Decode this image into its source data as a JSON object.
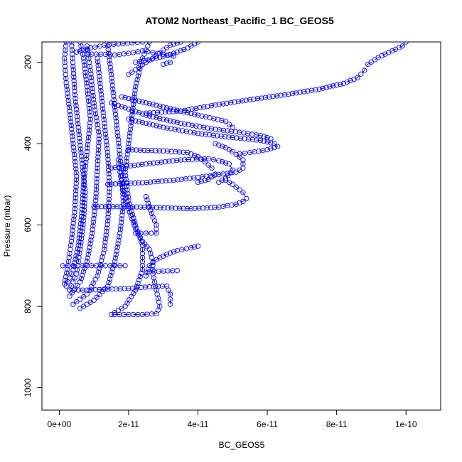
{
  "chart_data": {
    "type": "scatter",
    "title": "ATOM2 Northeast_Pacific_1 BC_GEOS5",
    "xlabel": "BC_GEOS5",
    "ylabel": "Pressure (mbar)",
    "xlim": [
      -5e-12,
      1.1e-10
    ],
    "ylim": [
      1055,
      150
    ],
    "y_reversed": true,
    "grid": false,
    "legend": "none",
    "marker": "open-circle",
    "color": "#0000ff",
    "x_ticks": [
      {
        "value": 0,
        "label": "0e+00"
      },
      {
        "value": 2e-11,
        "label": "2e-11"
      },
      {
        "value": 4e-11,
        "label": "4e-11"
      },
      {
        "value": 6e-11,
        "label": "6e-11"
      },
      {
        "value": 8e-11,
        "label": "8e-11"
      },
      {
        "value": 1e-10,
        "label": "1e-10"
      }
    ],
    "y_ticks": [
      {
        "value": 200,
        "label": "200"
      },
      {
        "value": 400,
        "label": "400"
      },
      {
        "value": 600,
        "label": "600"
      },
      {
        "value": 800,
        "label": "800"
      },
      {
        "value": 1000,
        "label": "1000"
      }
    ],
    "series": [
      {
        "values": [
          [
            1.5e-12,
            745
          ],
          [
            2.5e-12,
            700
          ],
          [
            3.5e-12,
            640
          ],
          [
            4.5e-12,
            560
          ],
          [
            5e-12,
            480
          ],
          [
            4e-12,
            400
          ],
          [
            3e-12,
            320
          ],
          [
            2e-12,
            250
          ],
          [
            1.5e-12,
            190
          ],
          [
            2e-12,
            150
          ]
        ]
      },
      {
        "values": [
          [
            3e-12,
            760
          ],
          [
            5e-12,
            720
          ],
          [
            6e-12,
            660
          ],
          [
            7e-12,
            590
          ],
          [
            7.5e-12,
            520
          ],
          [
            6.5e-12,
            440
          ],
          [
            5.5e-12,
            360
          ],
          [
            4.5e-12,
            280
          ],
          [
            4e-12,
            210
          ],
          [
            3.5e-12,
            150
          ]
        ]
      },
      {
        "values": [
          [
            2e-12,
            750
          ],
          [
            4e-12,
            710
          ],
          [
            5.5e-12,
            650
          ],
          [
            6.5e-12,
            570
          ],
          [
            7e-12,
            500
          ],
          [
            8e-12,
            420
          ],
          [
            9e-12,
            340
          ],
          [
            8e-12,
            260
          ],
          [
            7e-12,
            190
          ],
          [
            6e-12,
            150
          ]
        ]
      },
      {
        "values": [
          [
            3e-12,
            775
          ],
          [
            6e-12,
            740
          ],
          [
            8e-12,
            690
          ],
          [
            9.5e-12,
            620
          ],
          [
            1.05e-11,
            540
          ],
          [
            1.1e-11,
            460
          ],
          [
            1.15e-11,
            380
          ],
          [
            1e-11,
            300
          ],
          [
            9e-12,
            220
          ],
          [
            8e-12,
            160
          ]
        ]
      },
      {
        "values": [
          [
            4e-12,
            795
          ],
          [
            8e-12,
            770
          ],
          [
            1.1e-11,
            725
          ],
          [
            1.3e-11,
            660
          ],
          [
            1.4e-11,
            590
          ],
          [
            1.45e-11,
            510
          ],
          [
            1.4e-11,
            430
          ],
          [
            1.3e-11,
            350
          ],
          [
            1.2e-11,
            270
          ],
          [
            1.1e-11,
            190
          ]
        ]
      },
      {
        "values": [
          [
            6e-12,
            805
          ],
          [
            1e-11,
            785
          ],
          [
            1.4e-11,
            750
          ],
          [
            1.6e-11,
            690
          ],
          [
            1.75e-11,
            620
          ],
          [
            1.85e-11,
            550
          ],
          [
            1.8e-11,
            470
          ],
          [
            1.7e-11,
            390
          ],
          [
            1.6e-11,
            310
          ],
          [
            1.5e-11,
            230
          ],
          [
            1.4e-11,
            160
          ]
        ]
      },
      {
        "values": [
          [
            1.5e-11,
            820
          ],
          [
            1.9e-11,
            800
          ],
          [
            2.2e-11,
            760
          ],
          [
            2.4e-11,
            710
          ],
          [
            2.4e-11,
            650
          ],
          [
            2.2e-11,
            600
          ],
          [
            2e-11,
            540
          ],
          [
            1.9e-11,
            470
          ],
          [
            2e-11,
            400
          ],
          [
            2.1e-11,
            330
          ],
          [
            2.2e-11,
            260
          ],
          [
            2.4e-11,
            190
          ],
          [
            2.6e-11,
            150
          ]
        ]
      },
      {
        "values": [
          [
            1.6e-11,
            820
          ],
          [
            2e-11,
            820
          ],
          [
            2.4e-11,
            820
          ],
          [
            2.8e-11,
            818
          ],
          [
            2.9e-11,
            800
          ],
          [
            2.8e-11,
            760
          ],
          [
            2.7e-11,
            720
          ],
          [
            2.7e-11,
            690
          ],
          [
            2.6e-11,
            660
          ],
          [
            2.4e-11,
            640
          ],
          [
            2.2e-11,
            610
          ],
          [
            2e-11,
            560
          ],
          [
            1.8e-11,
            500
          ],
          [
            1.7e-11,
            440
          ]
        ]
      },
      {
        "values": [
          [
            1e-12,
            700
          ],
          [
            4e-12,
            700
          ],
          [
            8e-12,
            700
          ],
          [
            1.2e-11,
            700
          ],
          [
            1.6e-11,
            700
          ],
          [
            1.9e-11,
            700
          ]
        ]
      },
      {
        "values": [
          [
            3e-12,
            760
          ],
          [
            8e-12,
            760
          ],
          [
            1.4e-11,
            758
          ],
          [
            2e-11,
            756
          ],
          [
            2.6e-11,
            752
          ],
          [
            3.1e-11,
            750
          ],
          [
            3.2e-11,
            770
          ],
          [
            3.2e-11,
            795
          ]
        ]
      },
      {
        "values": [
          [
            2.2e-11,
            620
          ],
          [
            2.5e-11,
            620
          ],
          [
            2.8e-11,
            620
          ],
          [
            2.8e-11,
            600
          ],
          [
            2.7e-11,
            580
          ],
          [
            2.6e-11,
            555
          ],
          [
            2.5e-11,
            530
          ]
        ]
      },
      {
        "values": [
          [
            2.6e-11,
            715
          ],
          [
            3e-11,
            713
          ],
          [
            3.4e-11,
            712
          ]
        ]
      },
      {
        "values": [
          [
            2.5e-11,
            725
          ],
          [
            2.6e-11,
            700
          ],
          [
            2.8e-11,
            685
          ],
          [
            3.1e-11,
            672
          ],
          [
            3.4e-11,
            663
          ],
          [
            3.8e-11,
            656
          ],
          [
            4e-11,
            652
          ]
        ]
      },
      {
        "values": [
          [
            1e-11,
            555
          ],
          [
            2e-11,
            555
          ],
          [
            2.8e-11,
            557
          ],
          [
            3.8e-11,
            560
          ],
          [
            4.6e-11,
            556
          ],
          [
            5.1e-11,
            549
          ],
          [
            5.3e-11,
            542
          ],
          [
            5.4e-11,
            535
          ],
          [
            5.3e-11,
            520
          ],
          [
            5e-11,
            500
          ],
          [
            4.8e-11,
            490
          ]
        ]
      },
      {
        "values": [
          [
            1.4e-11,
            500
          ],
          [
            2.4e-11,
            496
          ],
          [
            3.3e-11,
            490
          ],
          [
            4e-11,
            483
          ],
          [
            4.6e-11,
            476
          ],
          [
            5.1e-11,
            470
          ],
          [
            5.3e-11,
            460
          ],
          [
            5.3e-11,
            440
          ],
          [
            5e-11,
            420
          ],
          [
            4.8e-11,
            410
          ],
          [
            4.5e-11,
            400
          ]
        ]
      },
      {
        "values": [
          [
            1.5e-11,
            460
          ],
          [
            2.5e-11,
            450
          ],
          [
            3.5e-11,
            440
          ],
          [
            4.3e-11,
            437
          ],
          [
            4.6e-11,
            442
          ],
          [
            4.9e-11,
            450
          ],
          [
            5e-11,
            465
          ],
          [
            4.8e-11,
            485
          ],
          [
            4.6e-11,
            495
          ]
        ]
      },
      {
        "values": [
          [
            2e-11,
            415
          ],
          [
            3e-11,
            418
          ],
          [
            3.7e-11,
            422
          ],
          [
            4e-11,
            432
          ],
          [
            4.2e-11,
            445
          ],
          [
            4.4e-11,
            460
          ],
          [
            4.5e-11,
            475
          ],
          [
            4.3e-11,
            488
          ],
          [
            4e-11,
            495
          ]
        ]
      },
      {
        "values": [
          [
            2e-11,
            340
          ],
          [
            3e-11,
            360
          ],
          [
            4e-11,
            375
          ],
          [
            5e-11,
            385
          ],
          [
            5.8e-11,
            392
          ],
          [
            6.2e-11,
            400
          ],
          [
            6.3e-11,
            407
          ],
          [
            6e-11,
            415
          ],
          [
            5.5e-11,
            422
          ],
          [
            5.2e-11,
            425
          ]
        ]
      },
      {
        "values": [
          [
            1.5e-11,
            300
          ],
          [
            2.5e-11,
            330
          ],
          [
            3.5e-11,
            350
          ],
          [
            4.5e-11,
            365
          ],
          [
            5.2e-11,
            372
          ],
          [
            5.8e-11,
            380
          ],
          [
            6.1e-11,
            388
          ]
        ]
      },
      {
        "values": [
          [
            1.8e-11,
            285
          ],
          [
            3e-11,
            310
          ],
          [
            4e-11,
            330
          ],
          [
            4.8e-11,
            345
          ],
          [
            5e-11,
            360
          ]
        ]
      },
      {
        "values": [
          [
            2.5e-11,
            325
          ],
          [
            3.5e-11,
            320
          ],
          [
            4.5e-11,
            305
          ],
          [
            5.5e-11,
            292
          ],
          [
            6.5e-11,
            280
          ],
          [
            7.5e-11,
            266
          ],
          [
            8.2e-11,
            252
          ],
          [
            8.6e-11,
            238
          ],
          [
            8.8e-11,
            220
          ],
          [
            8.9e-11,
            205
          ],
          [
            9.2e-11,
            188
          ],
          [
            9.6e-11,
            172
          ],
          [
            9.9e-11,
            160
          ],
          [
            1e-10,
            150
          ]
        ]
      },
      {
        "values": [
          [
            2e-11,
            230
          ],
          [
            2.5e-11,
            200
          ],
          [
            2.8e-11,
            185
          ],
          [
            3e-11,
            170
          ],
          [
            3.2e-11,
            158
          ],
          [
            3.5e-11,
            150
          ]
        ]
      },
      {
        "values": [
          [
            2.2e-11,
            200
          ],
          [
            2.8e-11,
            190
          ],
          [
            3.3e-11,
            178
          ],
          [
            3.7e-11,
            165
          ],
          [
            4e-11,
            150
          ]
        ]
      },
      {
        "values": [
          [
            8e-12,
            180
          ],
          [
            1.2e-11,
            180
          ],
          [
            1.6e-11,
            182
          ],
          [
            2e-11,
            178
          ],
          [
            2.4e-11,
            172
          ],
          [
            2.7e-11,
            176
          ],
          [
            3e-11,
            180
          ],
          [
            3.3e-11,
            185
          ],
          [
            3.2e-11,
            200
          ],
          [
            3e-11,
            205
          ]
        ]
      },
      {
        "values": [
          [
            5e-12,
            175
          ],
          [
            9e-12,
            165
          ],
          [
            1.3e-11,
            158
          ],
          [
            1.7e-11,
            155
          ],
          [
            2.1e-11,
            152
          ],
          [
            2.4e-11,
            150
          ]
        ]
      }
    ]
  }
}
